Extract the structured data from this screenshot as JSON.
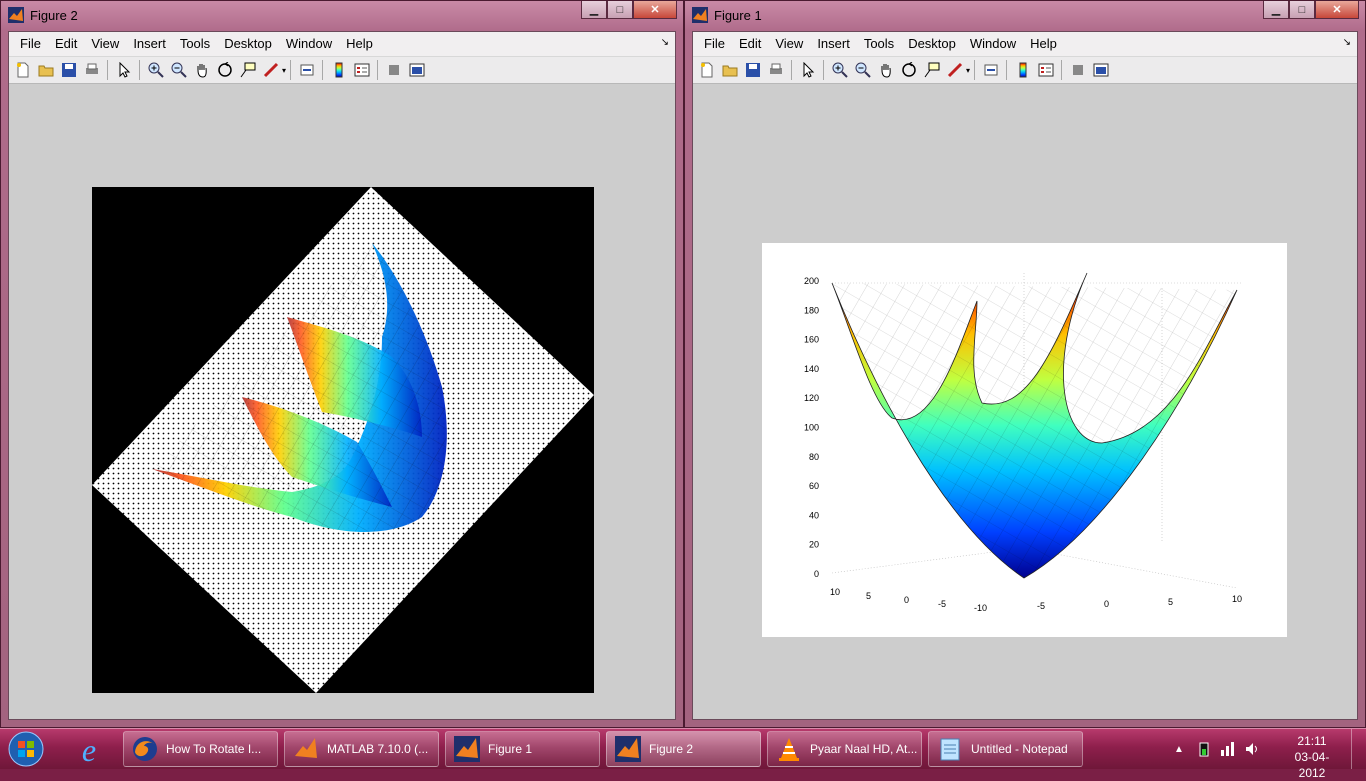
{
  "figure2": {
    "title": "Figure 2",
    "menus": [
      "File",
      "Edit",
      "View",
      "Insert",
      "Tools",
      "Desktop",
      "Window",
      "Help"
    ],
    "toolbar_icons": [
      "new-figure-icon",
      "open-file-icon",
      "save-icon",
      "print-icon",
      "edit-plot-icon",
      "zoom-in-icon",
      "zoom-out-icon",
      "pan-icon",
      "rotate-3d-icon",
      "data-cursor-icon",
      "brush-icon",
      "link-plot-icon",
      "colorbar-icon",
      "legend-icon",
      "hide-plot-tools-icon",
      "show-plot-tools-icon"
    ]
  },
  "figure1": {
    "title": "Figure 1",
    "menus": [
      "File",
      "Edit",
      "View",
      "Insert",
      "Tools",
      "Desktop",
      "Window",
      "Help"
    ],
    "z_ticks": [
      "200",
      "180",
      "160",
      "140",
      "120",
      "100",
      "80",
      "60",
      "40",
      "20",
      "0"
    ],
    "x_ticks_left": [
      "10",
      "5",
      "0",
      "-5",
      "-10"
    ],
    "x_ticks_right": [
      "-5",
      "0",
      "5",
      "10"
    ]
  },
  "taskbar": {
    "items": [
      {
        "label": "How To Rotate I...",
        "icon": "firefox-icon"
      },
      {
        "label": "MATLAB  7.10.0 (...",
        "icon": "matlab-icon"
      },
      {
        "label": "Figure 1",
        "icon": "matlab-icon"
      },
      {
        "label": "Figure 2",
        "icon": "matlab-icon"
      },
      {
        "label": "Pyaar Naal HD, At...",
        "icon": "vlc-icon"
      },
      {
        "label": "Untitled - Notepad",
        "icon": "notepad-icon"
      }
    ],
    "time": "21:11",
    "date": "03-04-2012"
  },
  "colors": {
    "taskbar": "#8e1f4c",
    "window_frame": "#b06c8b",
    "figure_bg": "#cdcdcd"
  }
}
